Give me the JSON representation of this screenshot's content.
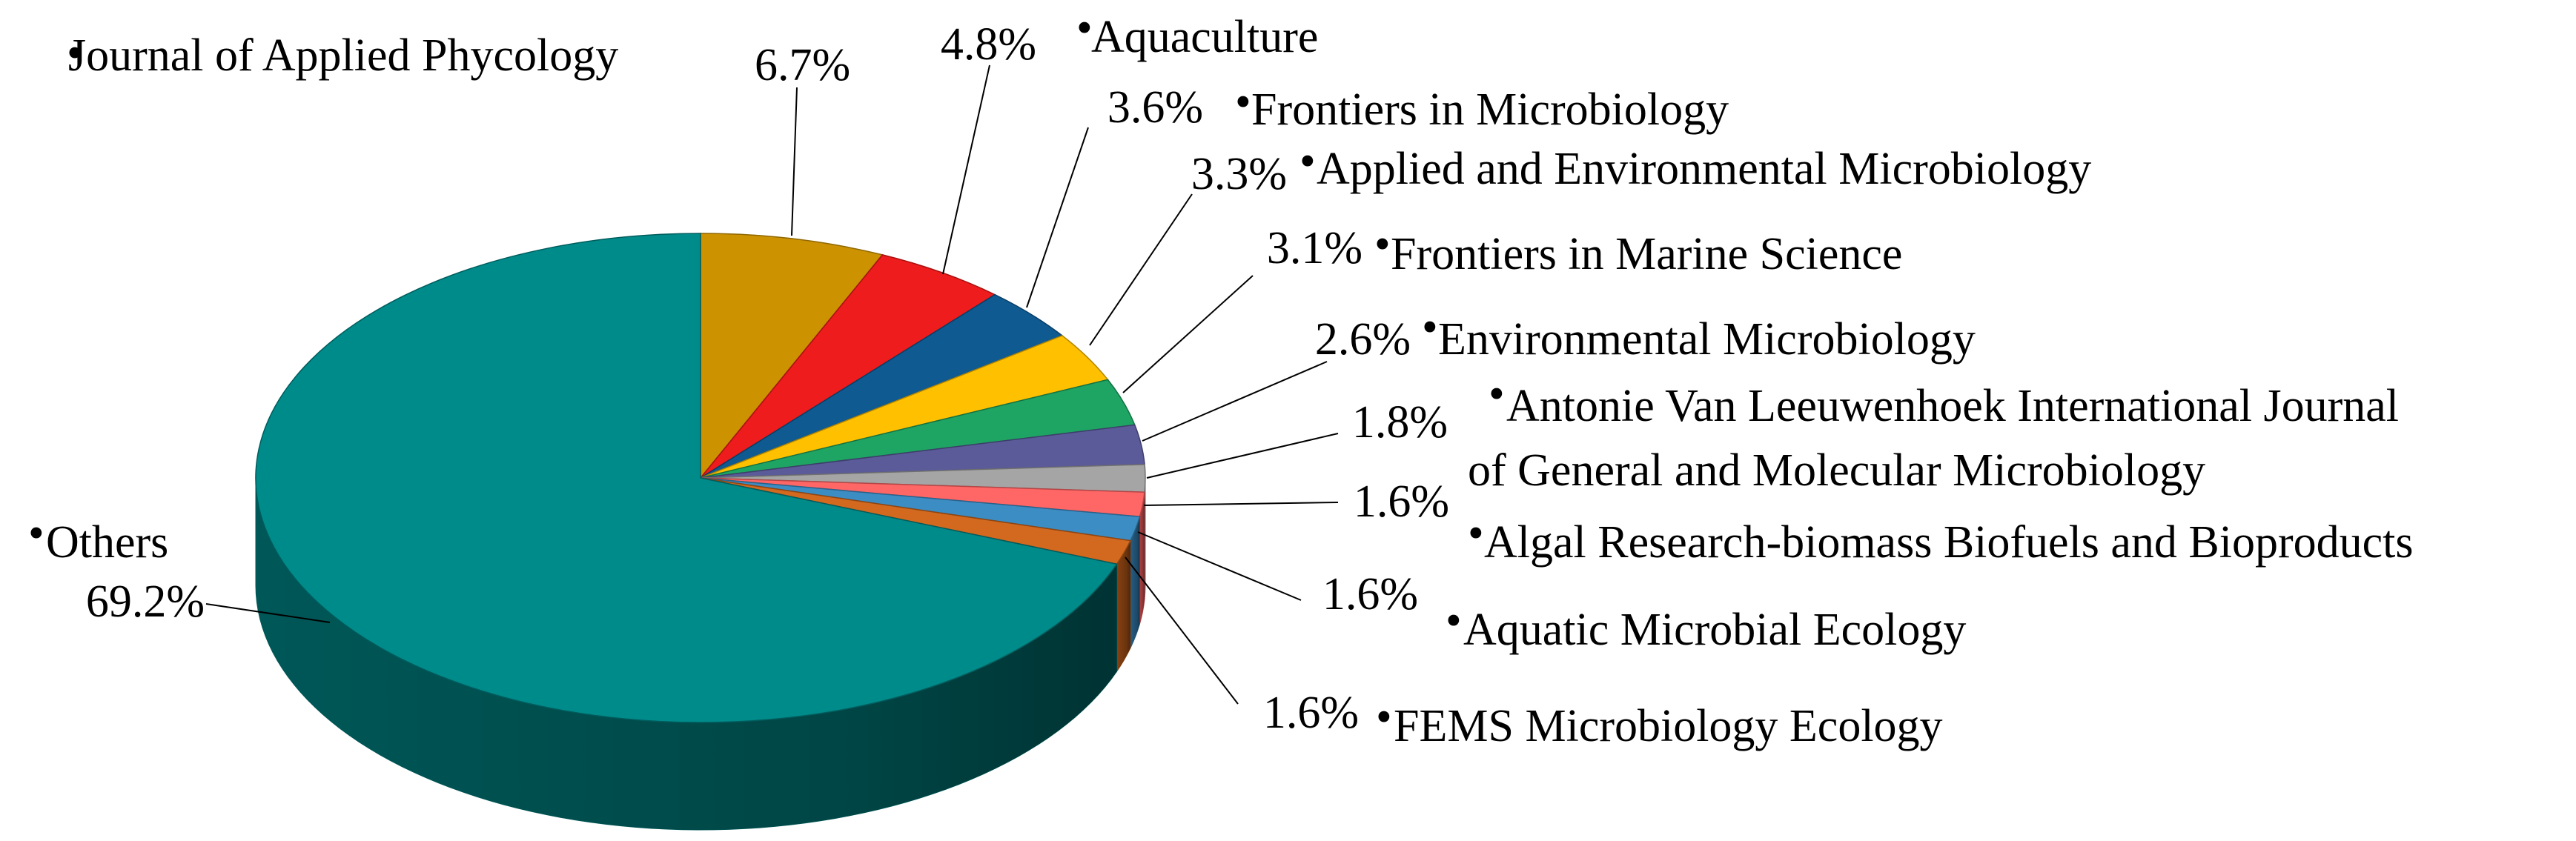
{
  "chart_data": {
    "type": "pie",
    "style": "3d",
    "title": "",
    "slices": [
      {
        "label": "Journal of Applied Phycology",
        "value": 6.7,
        "value_label": "6.7%",
        "color": "#CC9200",
        "side_color": "#8F6700"
      },
      {
        "label": "Aquaculture",
        "value": 4.8,
        "value_label": "4.8%",
        "color": "#EE1C1C",
        "side_color": "#A81010"
      },
      {
        "label": "Frontiers in Microbiology",
        "value": 3.6,
        "value_label": "3.6%",
        "color": "#0F5A91",
        "side_color": "#083E66"
      },
      {
        "label": "Applied and Environmental Microbiology",
        "value": 3.3,
        "value_label": "3.3%",
        "color": "#FFC000",
        "side_color": "#B38600"
      },
      {
        "label": "Frontiers in Marine Science",
        "value": 3.1,
        "value_label": "3.1%",
        "color": "#1FA563",
        "side_color": "#137343"
      },
      {
        "label": "Environmental Microbiology",
        "value": 2.6,
        "value_label": "2.6%",
        "color": "#5B5B9A",
        "side_color": "#3E3E6B"
      },
      {
        "label": "Antonie Van Leeuwenhoek International Journal",
        "label_line2": "of General and Molecular Microbiology",
        "value": 1.8,
        "value_label": "1.8%",
        "color": "#A5A5A5",
        "side_color": "#707070"
      },
      {
        "label": "Algal Research-biomass Biofuels and Bioproducts",
        "value": 1.6,
        "value_label": "1.6%",
        "color": "#FF6666",
        "side_color": "#B54545"
      },
      {
        "label": "Aquatic Microbial Ecology",
        "value": 1.6,
        "value_label": "1.6%",
        "color": "#3C8DC4",
        "side_color": "#28628A"
      },
      {
        "label": "FEMS Microbiology Ecology",
        "value": 1.6,
        "value_label": "1.6%",
        "color": "#D2691E",
        "side_color": "#8E4512"
      },
      {
        "label": "Others",
        "value": 69.2,
        "value_label": "69.2%",
        "color": "#008B8B",
        "side_color": "#005C5C"
      }
    ],
    "legend": "none",
    "bullet_glyph": "•"
  }
}
